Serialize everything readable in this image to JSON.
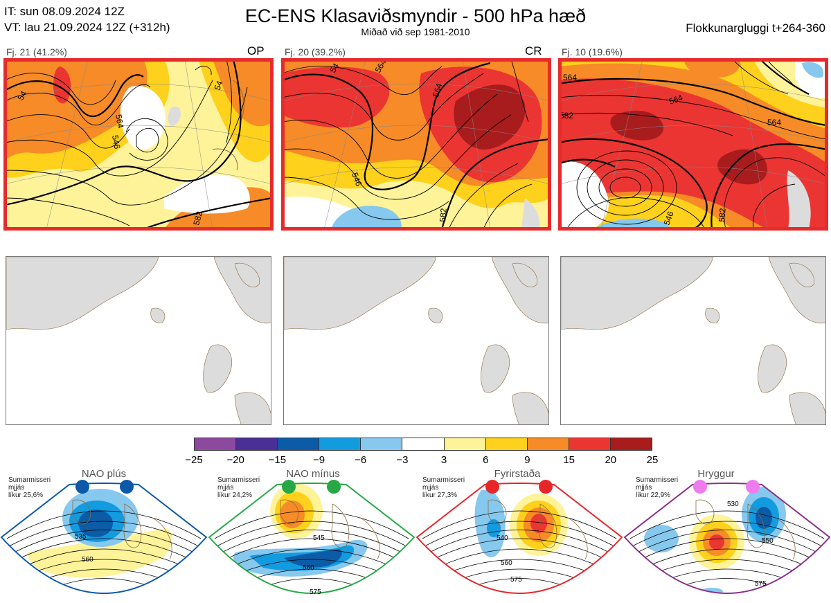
{
  "header": {
    "it_line": "IT: sun 08.09.2024 12Z",
    "vt_line": "VT: lau 21.09.2024 12Z  (+312h)",
    "title": "EC-ENS Klasaviðsmyndir - 500 hPa hæð",
    "subtitle": "Miðað við sep 1981-2010",
    "window": "Flokkunargluggi t+264-360"
  },
  "colors": {
    "panel_border": "#e52b2b",
    "land_grey": "#dcdcdc",
    "coast": "#8a6a3c"
  },
  "clusters": [
    {
      "label": "Fj. 21 (41.2%)",
      "code": "OP",
      "contours": [
        "54",
        "546",
        "564",
        "54",
        "582"
      ]
    },
    {
      "label": "Fj. 20 (39.2%)",
      "code": "CR",
      "contours": [
        "54",
        "546",
        "564",
        "564",
        "582"
      ]
    },
    {
      "label": "Fj. 10 (19.6%)",
      "code": "",
      "contours": [
        "564",
        "564",
        "564",
        "582",
        "582",
        "546"
      ]
    }
  ],
  "colorbar": {
    "colors": [
      "#8c4a9f",
      "#4a2f94",
      "#0b5ba6",
      "#139be0",
      "#86c8ee",
      "#ffffff",
      "#fff39a",
      "#fdd11c",
      "#f68b27",
      "#eb3532",
      "#a81c1e"
    ],
    "ticks": [
      "−25",
      "−20",
      "−15",
      "−9",
      "−6",
      "−3",
      "3",
      "6",
      "9",
      "15",
      "20",
      "25"
    ]
  },
  "regimes": [
    {
      "title": "NAO plús",
      "info": [
        "Sumarmisseri",
        "mjjás",
        "líkur 25,6%"
      ],
      "dot_color": "#0d58a8",
      "frame_color": "#0d58a8",
      "contour_labels": [
        "535",
        "560"
      ]
    },
    {
      "title": "NAO mínus",
      "info": [
        "Sumarmisseri",
        "mjjás",
        "líkur 24,2%"
      ],
      "dot_color": "#27a844",
      "frame_color": "#27a844",
      "contour_labels": [
        "545",
        "560",
        "575"
      ]
    },
    {
      "title": "Fyrirstaða",
      "info": [
        "Sumarmisseri",
        "mjjás",
        "líkur 27,3%"
      ],
      "dot_color": "#e8262a",
      "frame_color": "#e8262a",
      "contour_labels": [
        "540",
        "560",
        "575"
      ]
    },
    {
      "title": "Hryggur",
      "info": [
        "Sumarmisseri",
        "mjjás",
        "líkur 22,9%"
      ],
      "dot_color": "#ee7cee",
      "frame_color": "#8a2f8a",
      "contour_labels": [
        "530",
        "550",
        "575"
      ]
    }
  ]
}
